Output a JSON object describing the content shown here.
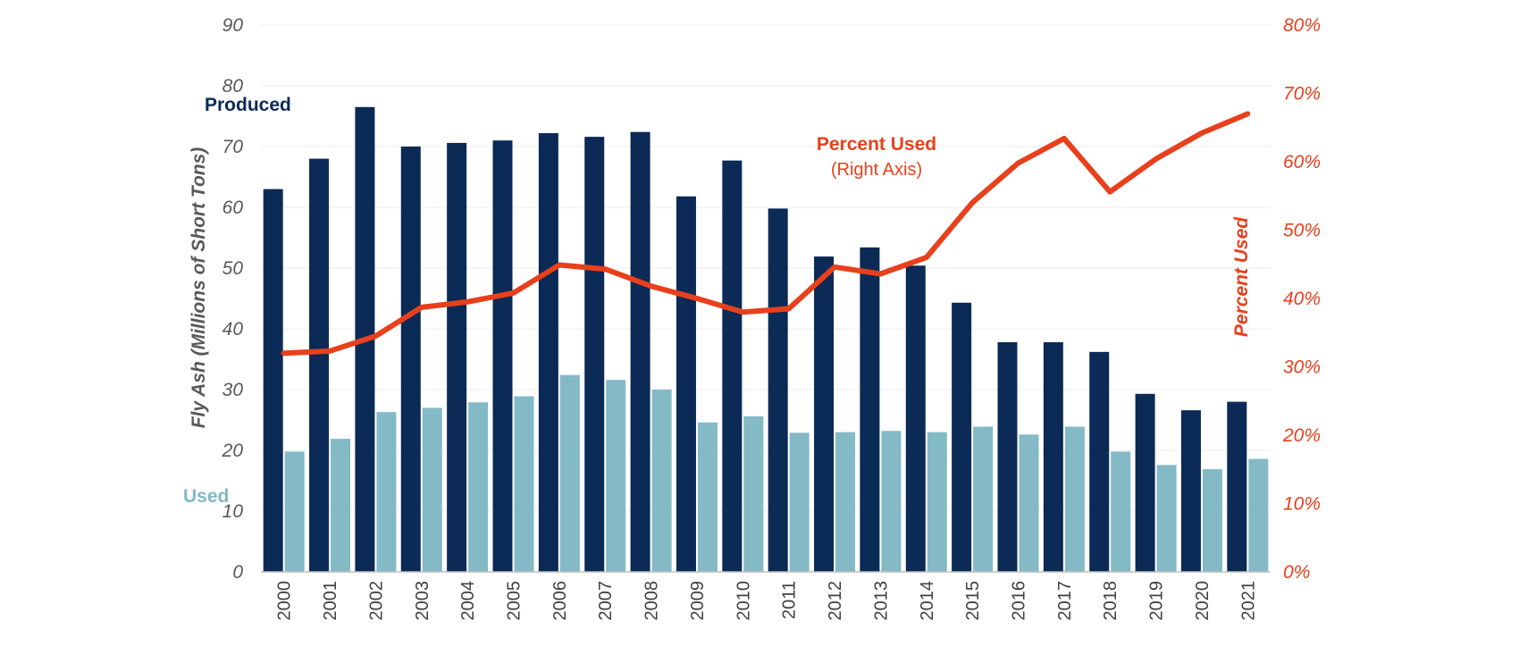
{
  "chart_data": {
    "type": "bar",
    "categories": [
      "2000",
      "2001",
      "2002",
      "2003",
      "2004",
      "2005",
      "2006",
      "2007",
      "2008",
      "2009",
      "2010",
      "2011",
      "2012",
      "2013",
      "2014",
      "2015",
      "2016",
      "2017",
      "2018",
      "2019",
      "2020",
      "2021"
    ],
    "series": [
      {
        "name": "Produced",
        "type": "bar",
        "axis": "left",
        "color": "#0b2a55",
        "values": [
          63.0,
          68.0,
          76.5,
          70.0,
          70.6,
          71.0,
          72.2,
          71.6,
          72.4,
          61.8,
          67.7,
          59.8,
          51.9,
          53.4,
          50.4,
          44.3,
          37.8,
          37.8,
          36.2,
          29.3,
          26.6,
          28.0
        ]
      },
      {
        "name": "Used",
        "type": "bar",
        "axis": "left",
        "color": "#84b9c6",
        "values": [
          19.8,
          21.9,
          26.3,
          27.0,
          27.9,
          28.9,
          32.4,
          31.6,
          30.0,
          24.6,
          25.6,
          22.9,
          23.0,
          23.2,
          23.0,
          23.9,
          22.6,
          23.9,
          19.8,
          17.6,
          16.9,
          18.6
        ]
      },
      {
        "name": "Percent Used",
        "type": "line",
        "axis": "right",
        "color": "#e8401c",
        "values": [
          32.0,
          32.3,
          34.5,
          38.7,
          39.5,
          40.8,
          44.9,
          44.3,
          41.8,
          40.0,
          38.0,
          38.5,
          44.6,
          43.6,
          46.0,
          54.0,
          59.8,
          63.4,
          55.6,
          60.4,
          64.2,
          67.0
        ]
      }
    ],
    "ylabel": "Fly Ash (Millions of Short Tons)",
    "ylabel_right": "Percent Used",
    "ylim": [
      0,
      90
    ],
    "ylim_right": [
      0,
      80
    ],
    "yticks": [
      "0",
      "10",
      "20",
      "30",
      "40",
      "50",
      "60",
      "70",
      "80",
      "90"
    ],
    "yticks_right": [
      "0%",
      "10%",
      "20%",
      "30%",
      "40%",
      "50%",
      "60%",
      "70%",
      "80%"
    ],
    "grid": true,
    "legend": "none",
    "annotations": {
      "produced": "Produced",
      "used": "Used",
      "percent_used": "Percent Used",
      "right_axis_note": "(Right Axis)"
    },
    "colors": {
      "produced": "#0b2a55",
      "used": "#84b9c6",
      "percent": "#e8401c",
      "grid": "#eeeeee",
      "axis": "#bfbfbf"
    }
  }
}
